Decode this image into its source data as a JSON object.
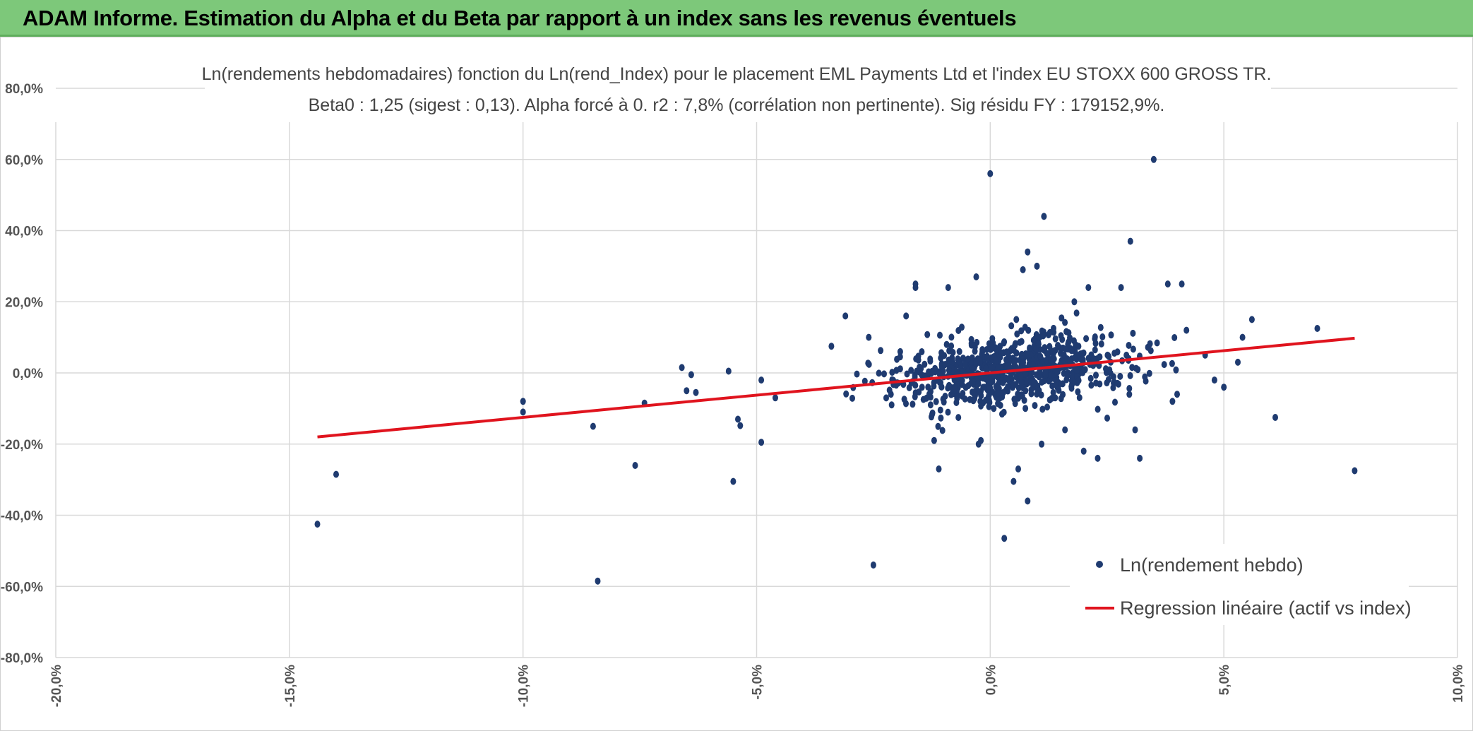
{
  "banner": {
    "title": "ADAM Informe. Estimation du Alpha et du Beta par rapport à un index sans les revenus éventuels"
  },
  "colors": {
    "banner_bg": "#7dc87a",
    "accent_corner": "#f2b21c",
    "points": "#1f3b70",
    "regression": "#e0141e",
    "grid": "#d9d9d9"
  },
  "chart_data": {
    "type": "scatter",
    "title_line1": "Ln(rendements hebdomadaires) fonction du Ln(rend_Index) pour le placement EML Payments Ltd et l'index EU STOXX 600 GROSS TR.",
    "title_line2": "Beta0 : 1,25 (sigest : 0,13). Alpha forcé à 0. r2 : 7,8% (corrélation non pertinente). Sig résidu FY : 179152,9%.",
    "xlim": [
      -20,
      10
    ],
    "ylim": [
      -80,
      80
    ],
    "x_ticks": [
      -20,
      -15,
      -10,
      -5,
      0,
      5,
      10
    ],
    "x_tick_labels": [
      "-20,0%",
      "-15,0%",
      "-10,0%",
      "-5,0%",
      "0,0%",
      "5,0%",
      "10,0%"
    ],
    "y_ticks": [
      80,
      60,
      40,
      20,
      0,
      -20,
      -40,
      -60,
      -80
    ],
    "y_tick_labels": [
      "80,0%",
      "60,0%",
      "40,0%",
      "20,0%",
      "0,0%",
      "-20,0%",
      "-40,0%",
      "-60,0%",
      "-80,0%"
    ],
    "legend": [
      {
        "label": "Ln(rendement hebdo)",
        "kind": "marker"
      },
      {
        "label": "Regression linéaire (actif vs index)",
        "kind": "line"
      }
    ],
    "regression": {
      "beta": 1.25,
      "alpha": 0,
      "x_range": [
        -14.4,
        7.8
      ]
    },
    "outliers": [
      [
        -14.4,
        -42.5
      ],
      [
        -14.0,
        -28.5
      ],
      [
        -10.0,
        -8.0
      ],
      [
        -10.0,
        -11.0
      ],
      [
        -8.5,
        -15.0
      ],
      [
        -8.4,
        -58.5
      ],
      [
        -7.6,
        -26.0
      ],
      [
        -7.4,
        -8.5
      ],
      [
        -6.6,
        1.5
      ],
      [
        -6.4,
        -0.5
      ],
      [
        -6.5,
        -5.0
      ],
      [
        -6.3,
        -5.5
      ],
      [
        -5.6,
        0.5
      ],
      [
        -5.5,
        -30.5
      ],
      [
        -5.4,
        -13.0
      ],
      [
        -5.35,
        -14.8
      ],
      [
        -4.9,
        -19.5
      ],
      [
        -4.9,
        -2.0
      ],
      [
        -4.6,
        -7.0
      ],
      [
        -2.5,
        -54.0
      ],
      [
        -1.2,
        -19.0
      ],
      [
        -1.1,
        -27.0
      ],
      [
        -0.2,
        -19.0
      ],
      [
        -0.25,
        -20.0
      ],
      [
        0.0,
        56.0
      ],
      [
        0.3,
        -46.5
      ],
      [
        0.5,
        -30.5
      ],
      [
        0.6,
        -27.0
      ],
      [
        0.8,
        -36.0
      ],
      [
        1.1,
        -20.0
      ],
      [
        1.15,
        44.0
      ],
      [
        0.8,
        34.0
      ],
      [
        0.7,
        29.0
      ],
      [
        1.0,
        30.0
      ],
      [
        1.6,
        -16.0
      ],
      [
        2.0,
        -22.0
      ],
      [
        2.3,
        -24.0
      ],
      [
        2.8,
        24.0
      ],
      [
        3.0,
        37.0
      ],
      [
        3.1,
        -16.0
      ],
      [
        3.2,
        -24.0
      ],
      [
        3.5,
        60.0
      ],
      [
        3.8,
        25.0
      ],
      [
        4.1,
        25.0
      ],
      [
        4.2,
        12.0
      ],
      [
        4.6,
        5.0
      ],
      [
        4.8,
        -2.0
      ],
      [
        5.0,
        -4.0
      ],
      [
        5.3,
        3.0
      ],
      [
        5.4,
        10.0
      ],
      [
        5.6,
        15.0
      ],
      [
        6.1,
        -12.5
      ],
      [
        7.0,
        12.5
      ],
      [
        7.8,
        -27.5
      ],
      [
        -1.6,
        25.0
      ],
      [
        -1.6,
        24.0
      ],
      [
        -0.9,
        24.0
      ],
      [
        -0.3,
        27.0
      ],
      [
        -3.1,
        16.0
      ],
      [
        -1.8,
        16.0
      ],
      [
        2.1,
        24.0
      ],
      [
        1.8,
        20.0
      ],
      [
        -2.6,
        10.0
      ],
      [
        -3.4,
        7.5
      ],
      [
        4.0,
        -6.0
      ],
      [
        3.9,
        -8.0
      ]
    ],
    "cluster_count": 760
  }
}
